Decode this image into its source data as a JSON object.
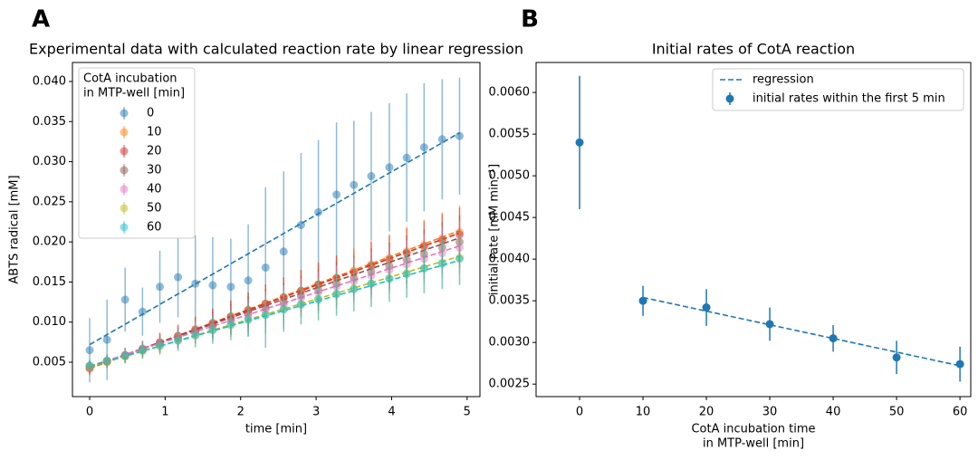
{
  "chart_data": [
    {
      "type": "scatter",
      "panel_label": "A",
      "title": "Experimental data with calculated reaction rate by linear regression",
      "x_label": "time [min]",
      "y_label": "ABTS radical [mM]",
      "legend_title": [
        "CotA incubation",
        "in MTP-well [min]"
      ],
      "legend": "upper left",
      "xlim": [
        -0.228,
        5.17
      ],
      "ylim": [
        0.00071,
        0.04237
      ],
      "xticks": [
        0,
        1,
        2,
        3,
        4,
        5
      ],
      "yticks": [
        {
          "value": 0.005,
          "label": "0.005"
        },
        {
          "value": 0.01,
          "label": "0.010"
        },
        {
          "value": 0.015,
          "label": "0.015"
        },
        {
          "value": 0.02,
          "label": "0.020"
        },
        {
          "value": 0.025,
          "label": "0.025"
        },
        {
          "value": 0.03,
          "label": "0.030"
        },
        {
          "value": 0.035,
          "label": "0.035"
        },
        {
          "value": 0.04,
          "label": "0.040"
        }
      ],
      "x": [
        0,
        0.23,
        0.47,
        0.7,
        0.93,
        1.17,
        1.4,
        1.63,
        1.87,
        2.1,
        2.33,
        2.57,
        2.8,
        3.03,
        3.27,
        3.5,
        3.73,
        3.97,
        4.2,
        4.43,
        4.67,
        4.9
      ],
      "fit_x": [
        0,
        4.9
      ],
      "series": [
        {
          "name": "0",
          "color": "#1f77b4",
          "values": [
            0.0065,
            0.0078,
            0.0128,
            0.0113,
            0.0144,
            0.0156,
            0.0148,
            0.0146,
            0.0144,
            0.0152,
            0.0168,
            0.0188,
            0.0221,
            0.0237,
            0.0259,
            0.0271,
            0.0282,
            0.0293,
            0.0305,
            0.0318,
            0.0328,
            0.0332
          ],
          "errors": [
            0.004,
            0.005,
            0.004,
            0.003,
            0.0045,
            0.005,
            0.006,
            0.006,
            0.006,
            0.007,
            0.01,
            0.01,
            0.009,
            0.009,
            0.009,
            0.008,
            0.008,
            0.008,
            0.008,
            0.008,
            0.0075,
            0.0073
          ],
          "fit": [
            0.0072,
            0.0336
          ]
        },
        {
          "name": "10",
          "color": "#ff7f0e",
          "values": [
            0.0042,
            0.005,
            0.0058,
            0.0066,
            0.0074,
            0.0082,
            0.009,
            0.0098,
            0.0107,
            0.0115,
            0.0123,
            0.0131,
            0.0139,
            0.0147,
            0.0155,
            0.0164,
            0.0172,
            0.018,
            0.0188,
            0.0196,
            0.0204,
            0.0212
          ],
          "errors": [
            0.0008,
            0.0008,
            0.0009,
            0.001,
            0.0012,
            0.0014,
            0.0016,
            0.0018,
            0.002,
            0.0022,
            0.0024,
            0.0025,
            0.0026,
            0.0027,
            0.0028,
            0.0029,
            0.003,
            0.003,
            0.0031,
            0.0032,
            0.0033,
            0.0034
          ],
          "fit": [
            0.0042,
            0.0214
          ]
        },
        {
          "name": "20",
          "color": "#d62728",
          "values": [
            0.0043,
            0.0051,
            0.0059,
            0.0067,
            0.0075,
            0.0083,
            0.0091,
            0.0099,
            0.0107,
            0.0115,
            0.0123,
            0.0131,
            0.0139,
            0.0147,
            0.0155,
            0.0162,
            0.017,
            0.0178,
            0.0186,
            0.0194,
            0.0202,
            0.0209
          ],
          "errors": [
            0.0008,
            0.0008,
            0.0009,
            0.001,
            0.0012,
            0.0014,
            0.0016,
            0.0018,
            0.002,
            0.0022,
            0.0024,
            0.0025,
            0.0026,
            0.0027,
            0.0028,
            0.0029,
            0.003,
            0.003,
            0.0031,
            0.0032,
            0.0033,
            0.0034
          ],
          "fit": [
            0.0043,
            0.0211
          ]
        },
        {
          "name": "30",
          "color": "#8c564b",
          "values": [
            0.0045,
            0.0051,
            0.0058,
            0.0065,
            0.0073,
            0.008,
            0.0088,
            0.0096,
            0.0103,
            0.0111,
            0.0118,
            0.0125,
            0.0133,
            0.014,
            0.0148,
            0.0155,
            0.0163,
            0.017,
            0.0178,
            0.0185,
            0.0193,
            0.02
          ],
          "errors": [
            0.0007,
            0.0008,
            0.0009,
            0.001,
            0.0011,
            0.0013,
            0.0015,
            0.0017,
            0.0019,
            0.0021,
            0.0023,
            0.0024,
            0.0025,
            0.0026,
            0.0027,
            0.0028,
            0.0029,
            0.0029,
            0.003,
            0.0031,
            0.0032,
            0.0033
          ],
          "fit": [
            0.0044,
            0.0205
          ]
        },
        {
          "name": "40",
          "color": "#e377c2",
          "values": [
            0.0045,
            0.0052,
            0.0059,
            0.0066,
            0.0073,
            0.008,
            0.0087,
            0.0094,
            0.0101,
            0.0108,
            0.0115,
            0.0122,
            0.013,
            0.0137,
            0.0144,
            0.0151,
            0.0158,
            0.0165,
            0.0172,
            0.0179,
            0.0186,
            0.0193
          ],
          "errors": [
            0.0007,
            0.0008,
            0.0009,
            0.001,
            0.0011,
            0.0013,
            0.0015,
            0.0017,
            0.0019,
            0.0021,
            0.0023,
            0.0024,
            0.0025,
            0.0026,
            0.0027,
            0.0028,
            0.0029,
            0.0029,
            0.003,
            0.0031,
            0.0032,
            0.0033
          ],
          "fit": [
            0.0045,
            0.0195
          ]
        },
        {
          "name": "50",
          "color": "#bcbd22",
          "values": [
            0.0045,
            0.0051,
            0.0057,
            0.0064,
            0.007,
            0.0077,
            0.0083,
            0.009,
            0.0096,
            0.0103,
            0.0109,
            0.0116,
            0.0122,
            0.0129,
            0.0135,
            0.0142,
            0.0148,
            0.0155,
            0.0161,
            0.0167,
            0.0174,
            0.018
          ],
          "errors": [
            0.0007,
            0.0008,
            0.0009,
            0.001,
            0.0011,
            0.0013,
            0.0015,
            0.0017,
            0.0019,
            0.0021,
            0.0023,
            0.0024,
            0.0025,
            0.0026,
            0.0027,
            0.0028,
            0.0029,
            0.0029,
            0.003,
            0.0031,
            0.0032,
            0.0033
          ],
          "fit": [
            0.0044,
            0.0182
          ]
        },
        {
          "name": "60",
          "color": "#17becf",
          "values": [
            0.0046,
            0.0052,
            0.0058,
            0.0065,
            0.0071,
            0.0077,
            0.0084,
            0.009,
            0.0097,
            0.0103,
            0.0109,
            0.0116,
            0.0122,
            0.0128,
            0.0135,
            0.0141,
            0.0148,
            0.0154,
            0.016,
            0.0167,
            0.0173,
            0.0179
          ],
          "errors": [
            0.0007,
            0.0008,
            0.0009,
            0.001,
            0.0011,
            0.0013,
            0.0015,
            0.0017,
            0.0019,
            0.0021,
            0.0023,
            0.0024,
            0.0025,
            0.0026,
            0.0027,
            0.0028,
            0.0029,
            0.0029,
            0.003,
            0.0031,
            0.0032,
            0.0033
          ],
          "fit": [
            0.0045,
            0.0177
          ]
        }
      ]
    },
    {
      "type": "scatter",
      "panel_label": "B",
      "title": "Initial rates of CotA reaction",
      "x_label": [
        "CotA incubation time",
        "in MTP-well [min]"
      ],
      "y_label": "initial rate [mM min⁻¹]",
      "legend": "upper right",
      "xlim": [
        -6.86,
        61.7
      ],
      "ylim": [
        0.00235,
        0.00636
      ],
      "xticks": [
        0,
        10,
        20,
        30,
        40,
        50,
        60
      ],
      "yticks": [
        {
          "value": 0.0025,
          "label": "0.0025"
        },
        {
          "value": 0.003,
          "label": "0.0030"
        },
        {
          "value": 0.0035,
          "label": "0.0035"
        },
        {
          "value": 0.004,
          "label": "0.0040"
        },
        {
          "value": 0.0045,
          "label": "0.0045"
        },
        {
          "value": 0.005,
          "label": "0.0050"
        },
        {
          "value": 0.0055,
          "label": "0.0055"
        },
        {
          "value": 0.006,
          "label": "0.0060"
        }
      ],
      "x": [
        0,
        10,
        20,
        30,
        40,
        50,
        60
      ],
      "regression": {
        "name": "regression",
        "color": "#1f77b4",
        "x": [
          10,
          60
        ],
        "values": [
          0.00354,
          0.00272
        ]
      },
      "series": [
        {
          "name": "initial rates within the first 5 min",
          "color": "#1f77b4",
          "values": [
            0.0054,
            0.0035,
            0.00342,
            0.00322,
            0.00305,
            0.00282,
            0.00274
          ],
          "errors": [
            0.0008,
            0.00018,
            0.00022,
            0.0002,
            0.00016,
            0.0002,
            0.00021
          ]
        }
      ]
    }
  ]
}
